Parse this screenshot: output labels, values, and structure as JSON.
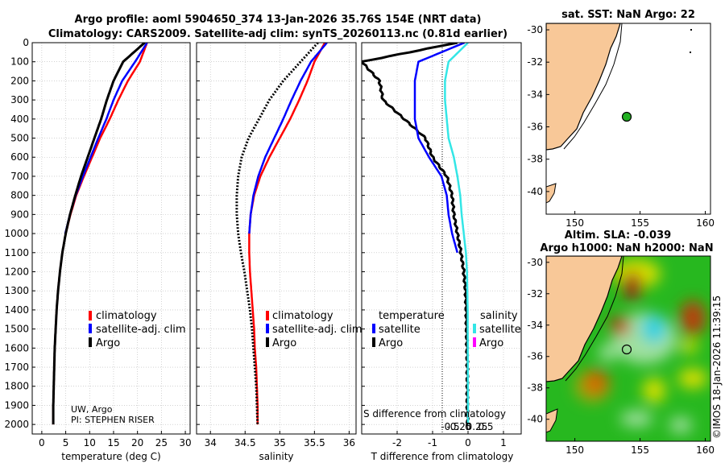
{
  "header": {
    "title_line1": "Argo profile: aoml 5904650_374 13-Jan-2026 35.76S 154E (NRT data)",
    "title_line2": "Climatology: CARS2009. Satellite-adj clim: synTS_20260113.nc (0.81d earlier)"
  },
  "colors": {
    "climatology": "#ff0000",
    "satellite": "#0000ff",
    "argo": "#000000",
    "s_sat": "#33e6e6",
    "s_argo": "#ff00ff",
    "land": "#f8c898"
  },
  "chart_data": [
    {
      "type": "line",
      "name": "temperature-profile",
      "xlabel": "temperature (deg C)",
      "ylabel": "depth",
      "xlim": [
        -2,
        31
      ],
      "ylim": [
        0,
        2050
      ],
      "xticks": [
        0,
        5,
        10,
        15,
        20,
        25,
        30
      ],
      "yticks": [
        0,
        100,
        200,
        300,
        400,
        500,
        600,
        700,
        800,
        900,
        1000,
        1100,
        1200,
        1300,
        1400,
        1500,
        1600,
        1700,
        1800,
        1900,
        2000
      ],
      "series": [
        {
          "name": "climatology",
          "color": "#ff0000",
          "x": [
            22.0,
            20.5,
            18.0,
            16.0,
            14.2,
            12.2,
            10.5,
            8.8,
            7.2,
            6.0,
            5.0,
            4.3,
            3.8,
            3.4,
            3.1,
            2.9,
            2.7,
            2.6,
            2.5,
            2.4,
            2.4
          ],
          "y": [
            0,
            100,
            200,
            300,
            400,
            500,
            600,
            700,
            800,
            900,
            1000,
            1100,
            1200,
            1300,
            1400,
            1500,
            1600,
            1700,
            1800,
            1900,
            2000
          ]
        },
        {
          "name": "satellite-adj. clim",
          "color": "#0000ff",
          "x": [
            22.0,
            19.5,
            16.8,
            15.0,
            13.5,
            11.8,
            10.2,
            8.6,
            7.1,
            5.9,
            4.9
          ],
          "y": [
            0,
            100,
            200,
            300,
            400,
            500,
            600,
            700,
            800,
            900,
            1000
          ]
        },
        {
          "name": "Argo",
          "color": "#000000",
          "x": [
            21.5,
            17.0,
            15.0,
            13.6,
            12.4,
            11.0,
            9.6,
            8.2,
            7.0,
            5.9,
            5.0,
            4.3,
            3.8,
            3.4,
            3.1,
            2.9,
            2.7,
            2.6,
            2.5,
            2.4,
            2.4
          ],
          "y": [
            0,
            100,
            200,
            300,
            400,
            500,
            600,
            700,
            800,
            900,
            1000,
            1100,
            1200,
            1300,
            1400,
            1500,
            1600,
            1700,
            1800,
            1900,
            2000
          ]
        }
      ],
      "legend": [
        "climatology",
        "satellite-adj. clim",
        "Argo"
      ],
      "annotations": [
        "UW, Argo",
        "PI: STEPHEN RISER"
      ]
    },
    {
      "type": "line",
      "name": "salinity-profile",
      "xlabel": "salinity",
      "ylabel": "depth",
      "xlim": [
        33.8,
        36.1
      ],
      "ylim": [
        0,
        2050
      ],
      "xticks": [
        34,
        34.5,
        35,
        35.5,
        36
      ],
      "series": [
        {
          "name": "climatology",
          "color": "#ff0000",
          "x": [
            35.65,
            35.5,
            35.4,
            35.28,
            35.15,
            35.0,
            34.85,
            34.72,
            34.63,
            34.58,
            34.56,
            34.56,
            34.57,
            34.59,
            34.61,
            34.63,
            34.64,
            34.66,
            34.67,
            34.68,
            34.68
          ],
          "y": [
            0,
            100,
            200,
            300,
            400,
            500,
            600,
            700,
            800,
            900,
            1000,
            1100,
            1200,
            1300,
            1400,
            1500,
            1600,
            1700,
            1800,
            1900,
            2000
          ]
        },
        {
          "name": "satellite-adj. clim",
          "color": "#0000ff",
          "x": [
            35.68,
            35.45,
            35.3,
            35.17,
            35.05,
            34.92,
            34.79,
            34.69,
            34.62,
            34.58,
            34.56
          ],
          "y": [
            0,
            100,
            200,
            300,
            400,
            500,
            600,
            700,
            800,
            900,
            1000
          ]
        },
        {
          "name": "Argo",
          "color": "#000000",
          "x": [
            35.55,
            35.3,
            35.05,
            34.85,
            34.7,
            34.55,
            34.45,
            34.4,
            34.38,
            34.38,
            34.4,
            34.44,
            34.49,
            34.53,
            34.57,
            34.6,
            34.62,
            34.64,
            34.66,
            34.67,
            34.68
          ],
          "y": [
            0,
            100,
            200,
            300,
            400,
            500,
            600,
            700,
            800,
            900,
            1000,
            1100,
            1200,
            1300,
            1400,
            1500,
            1600,
            1700,
            1800,
            1900,
            2000
          ]
        }
      ],
      "legend": [
        "climatology",
        "satellite-adj. clim",
        "Argo"
      ]
    },
    {
      "type": "line",
      "name": "difference-profile",
      "xlabel": "T difference from climatology",
      "x2label": "S difference from climatology",
      "xlim": [
        -3,
        1.5
      ],
      "ylim": [
        0,
        2050
      ],
      "xticks": [
        "-2",
        "-1",
        "0",
        "1"
      ],
      "x2ticks": [
        "-0.5",
        "-0.25",
        "0",
        "0.25",
        "0.5"
      ],
      "series": [
        {
          "name": "temperature Argo",
          "color": "#000000",
          "x": [
            -0.3,
            -3.0,
            -2.5,
            -2.4,
            -1.8,
            -1.2,
            -1.0,
            -0.6,
            -0.45,
            -0.4,
            -0.3,
            -0.2,
            -0.12,
            -0.07,
            -0.05,
            -0.04,
            -0.03,
            -0.02,
            -0.02,
            -0.02,
            -0.01
          ],
          "y": [
            0,
            100,
            200,
            300,
            400,
            500,
            600,
            700,
            800,
            900,
            1000,
            1100,
            1200,
            1300,
            1400,
            1500,
            1600,
            1700,
            1800,
            1900,
            2000
          ]
        },
        {
          "name": "temperature satellite",
          "color": "#0000ff",
          "x": [
            -0.1,
            -1.4,
            -1.5,
            -1.5,
            -1.5,
            -1.4,
            -1.1,
            -0.75,
            -0.6,
            -0.55,
            -0.45,
            -0.3
          ],
          "y": [
            0,
            100,
            200,
            300,
            400,
            500,
            600,
            700,
            800,
            900,
            1000,
            1100
          ]
        },
        {
          "name": "salinity satellite",
          "color": "#33e6e6",
          "x": [
            0.0,
            -0.55,
            -0.65,
            -0.65,
            -0.6,
            -0.55,
            -0.4,
            -0.3,
            -0.22,
            -0.18,
            -0.12,
            -0.06,
            -0.03,
            -0.02,
            -0.01,
            0.0
          ],
          "y": [
            0,
            100,
            200,
            300,
            400,
            500,
            600,
            700,
            800,
            900,
            1000,
            1100,
            1200,
            1300,
            1400,
            2000
          ]
        }
      ],
      "legend_temperature": {
        "title": "temperature",
        "items": [
          "satellite",
          "Argo"
        ]
      },
      "legend_salinity": {
        "title": "salinity",
        "items": [
          "satellite",
          "Argo"
        ]
      }
    }
  ],
  "maps": {
    "sst": {
      "title": "sat. SST: NaN Argo: 22",
      "yticks": [
        "-30",
        "-32",
        "-34",
        "-36",
        "-38",
        "-40"
      ],
      "xticks": [
        "150",
        "155",
        "160"
      ]
    },
    "sla": {
      "title1": "Altim. SLA: -0.039",
      "title2": "Argo h1000: NaN h2000: NaN",
      "yticks": [
        "-30",
        "-32",
        "-34",
        "-36",
        "-38",
        "-40"
      ],
      "xticks": [
        "150",
        "155",
        "160"
      ]
    },
    "footer": "©IMOS 18-Jan-2026 11:39:15"
  }
}
